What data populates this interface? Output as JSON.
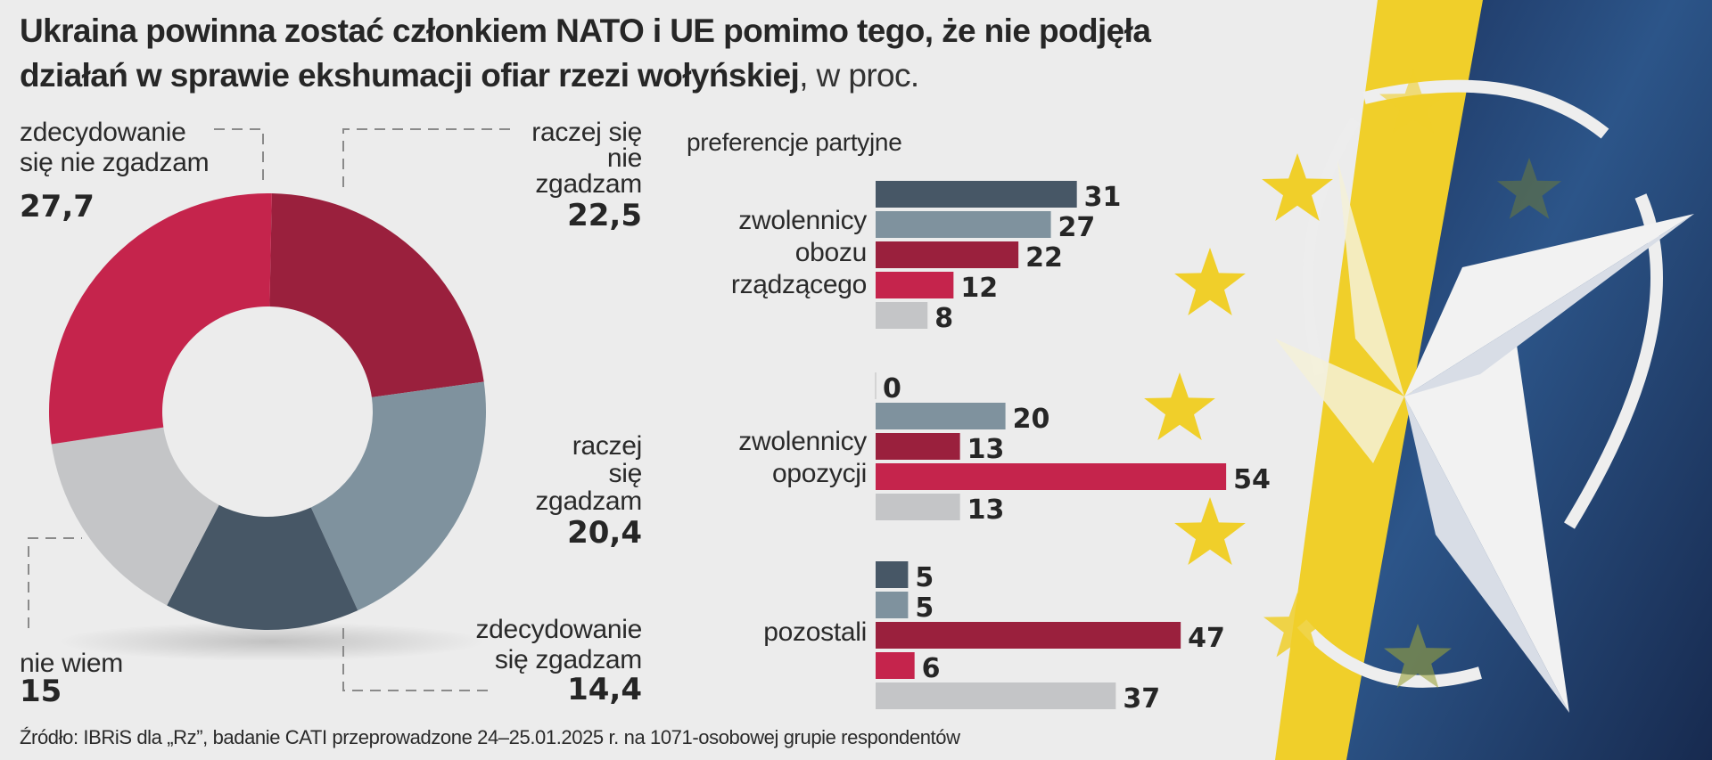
{
  "title": {
    "bold": "Ukraina powinna zostać członkiem NATO i UE pomimo tego, że nie podjęła działań w sprawie ekshumacji ofiar rzezi wołyńskiej",
    "light": ", w proc."
  },
  "source": "Źródło: IBRiS dla „Rz”, badanie CATI przeprowadzone 24–25.01.2025 r.  na 1071-osobowej grupie respondentów",
  "colors": {
    "background": "#ececec",
    "zdecydowanie_nie": "#c5244c",
    "raczej_nie": "#9a203d",
    "raczej_tak": "#7f929e",
    "zdecydowanie_tak": "#475766",
    "nie_wiem": "#c4c5c7",
    "eu_yellow": "#f0cf2a",
    "nato_blue": "#1f3560"
  },
  "chart_data": [
    {
      "type": "pie",
      "variant": "donut",
      "title": "Ukraina powinna zostać członkiem NATO i UE pomimo tego, że nie podjęła działań w sprawie ekshumacji ofiar rzezi wołyńskiej, w proc.",
      "slices": [
        {
          "key": "raczej_nie",
          "label": "raczej się nie zgadzam",
          "value": 22.5,
          "display": "22,5"
        },
        {
          "key": "raczej_tak",
          "label": "raczej się zgadzam",
          "value": 20.4,
          "display": "20,4"
        },
        {
          "key": "zdecydowanie_tak",
          "label": "zdecydowanie się zgadzam",
          "value": 14.4,
          "display": "14,4"
        },
        {
          "key": "nie_wiem",
          "label": "nie wiem",
          "value": 15,
          "display": "15"
        },
        {
          "key": "zdecydowanie_nie",
          "label": "zdecydowanie się nie zgadzam",
          "value": 27.7,
          "display": "27,7"
        }
      ],
      "start_direction": "top, clockwise"
    },
    {
      "type": "bar",
      "orientation": "horizontal",
      "title": "preferencje partyjne",
      "series_order": [
        "zdecydowanie_tak",
        "raczej_tak",
        "raczej_nie",
        "zdecydowanie_nie",
        "nie_wiem"
      ],
      "groups": [
        {
          "label": [
            "zwolennicy",
            "obozu",
            "rządzącego"
          ],
          "values": [
            31,
            27,
            22,
            12,
            8
          ]
        },
        {
          "label": [
            "zwolennicy",
            "opozycji"
          ],
          "values": [
            0,
            20,
            13,
            54,
            13
          ]
        },
        {
          "label": [
            "pozostali"
          ],
          "values": [
            5,
            5,
            47,
            6,
            37
          ]
        }
      ],
      "xlim": [
        0,
        60
      ]
    }
  ],
  "labels": {
    "zdecydowanie_nie": [
      "zdecydowanie",
      "się nie zgadzam"
    ],
    "raczej_nie": [
      "raczej się",
      "nie",
      "zgadzam"
    ],
    "raczej_tak": [
      "raczej",
      "się",
      "zgadzam"
    ],
    "zdecydowanie_tak": [
      "zdecydowanie",
      "się zgadzam"
    ],
    "nie_wiem": [
      "nie wiem"
    ]
  }
}
